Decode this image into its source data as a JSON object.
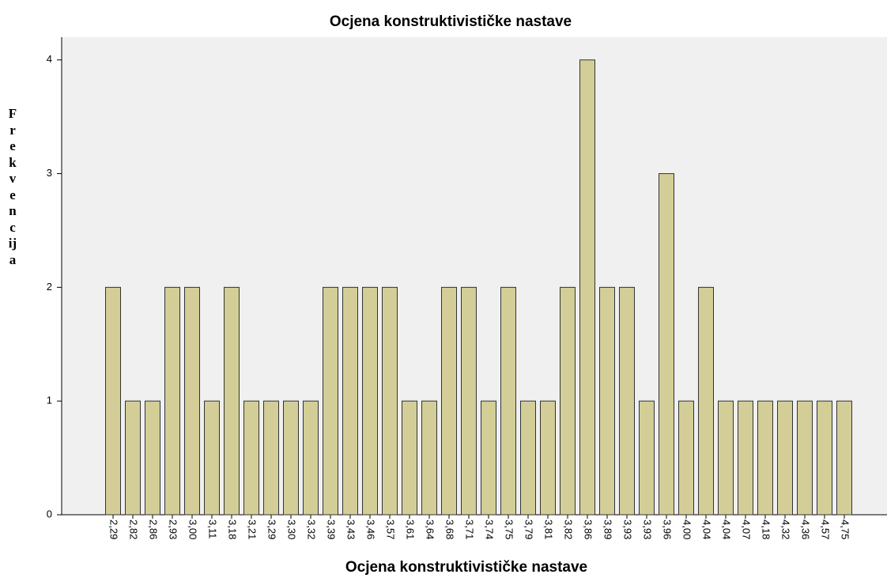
{
  "chart_data": {
    "type": "bar",
    "title": "Ocjena konstruktivističke nastave",
    "x_label": "Ocjena konstruktivističke nastave",
    "y_label": "Frekvencija",
    "categories": [
      "2,29",
      "2,82",
      "2,86",
      "2,93",
      "3,00",
      "3,11",
      "3,18",
      "3,21",
      "3,29",
      "3,30",
      "3,32",
      "3,39",
      "3,43",
      "3,46",
      "3,57",
      "3,61",
      "3,64",
      "3,68",
      "3,71",
      "3,74",
      "3,75",
      "3,79",
      "3,81",
      "3,82",
      "3,86",
      "3,89",
      "3,93",
      "3,93",
      "3,96",
      "4,00",
      "4,04",
      "4,04",
      "4,07",
      "4,18",
      "4,32",
      "4,36",
      "4,57",
      "4,75"
    ],
    "values": [
      2,
      1,
      1,
      2,
      2,
      1,
      2,
      1,
      1,
      1,
      1,
      2,
      2,
      2,
      2,
      1,
      1,
      2,
      2,
      1,
      2,
      1,
      1,
      2,
      4,
      2,
      2,
      1,
      3,
      1,
      2,
      1,
      1,
      1,
      1,
      1,
      1,
      1
    ],
    "color": "#d3ce97",
    "ylim": [
      0,
      4.2
    ],
    "yticks": [
      0,
      1,
      2,
      3,
      4
    ]
  }
}
